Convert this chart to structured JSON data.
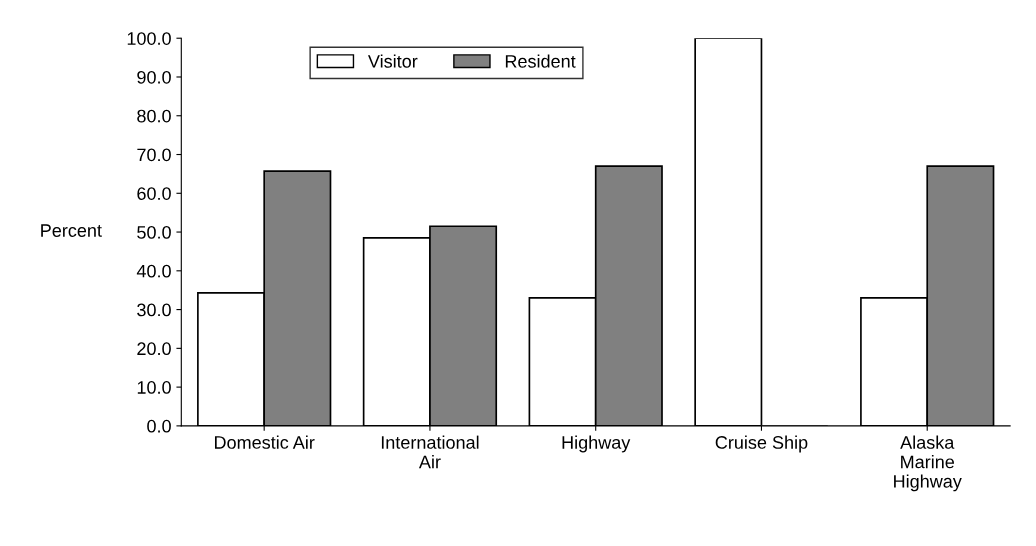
{
  "chart_data": {
    "type": "bar",
    "ylabel": "Percent",
    "categories": [
      "Domestic Air",
      "International\nAir",
      "Highway",
      "Cruise Ship",
      "Alaska\nMarine\nHighway"
    ],
    "series": [
      {
        "name": "Visitor",
        "color": "#ffffff",
        "values": [
          34.3,
          48.5,
          33.0,
          100.0,
          33.0
        ]
      },
      {
        "name": "Resident",
        "color": "#808080",
        "values": [
          65.7,
          51.5,
          67.0,
          0.0,
          67.0
        ]
      }
    ],
    "ylim": [
      0,
      100
    ],
    "yticks": [
      {
        "value": 0,
        "label": "0.0"
      },
      {
        "value": 10,
        "label": "10.0"
      },
      {
        "value": 20,
        "label": "20.0"
      },
      {
        "value": 30,
        "label": "30.0"
      },
      {
        "value": 40,
        "label": "40.0"
      },
      {
        "value": 50,
        "label": "50.0"
      },
      {
        "value": 60,
        "label": "60.0"
      },
      {
        "value": 70,
        "label": "70.0"
      },
      {
        "value": 80,
        "label": "80.0"
      },
      {
        "value": 90,
        "label": "90.0"
      },
      {
        "value": 100,
        "label": "100.0"
      }
    ],
    "legend": "top",
    "grid": false
  }
}
